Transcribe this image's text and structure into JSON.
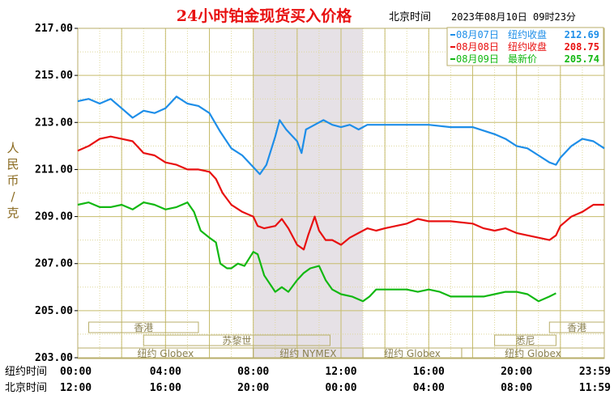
{
  "chart_data": {
    "type": "line",
    "title": "24小时铂金现货买入价格",
    "timezone_label": "北京时间",
    "timestamp": "2023年08月10日 09时23分",
    "ylabel": "人民币/克",
    "ylim": [
      203,
      217
    ],
    "yticks": [
      "217.00",
      "215.00",
      "213.00",
      "211.00",
      "209.00",
      "207.00",
      "205.00",
      "203.00"
    ],
    "xlim": [
      0,
      24
    ],
    "x_row_labels": [
      "纽约时间",
      "北京时间"
    ],
    "x_ticks_ny": [
      "00:00",
      "04:00",
      "08:00",
      "12:00",
      "16:00",
      "20:00",
      "23:59"
    ],
    "x_ticks_bj": [
      "12:00",
      "16:00",
      "20:00",
      "00:00",
      "04:00",
      "08:00",
      "11:59"
    ],
    "shaded_range": [
      8,
      13
    ],
    "grid": true,
    "legend_position": "top-right",
    "legend": [
      {
        "date": "08月07日",
        "label": "纽约收盘",
        "value": "212.69",
        "color": "#1e8ee8"
      },
      {
        "date": "08月08日",
        "label": "纽约收盘",
        "value": "208.75",
        "color": "#e81010"
      },
      {
        "date": "08月09日",
        "label": "最新价",
        "value": "205.74",
        "color": "#12b812"
      }
    ],
    "sessions": [
      {
        "label": "香港",
        "start": 0.5,
        "end": 5.5
      },
      {
        "label": "苏黎世",
        "start": 3.0,
        "end": 11.5
      },
      {
        "label": "纽约 Globex",
        "start": 0.0,
        "end": 8.0
      },
      {
        "label": "纽约 NYMEX",
        "start": 8.0,
        "end": 13.0
      },
      {
        "label": "纽约 Globex",
        "start": 13.0,
        "end": 17.5
      },
      {
        "label": "悉尼",
        "start": 19.0,
        "end": 21.8
      },
      {
        "label": "香港",
        "start": 21.5,
        "end": 24.0
      },
      {
        "label": "纽约 Globex",
        "start": 17.5,
        "end": 24.0
      }
    ],
    "series": [
      {
        "name": "08月07日",
        "color": "#1e8ee8",
        "points": [
          [
            0,
            213.9
          ],
          [
            0.5,
            214.0
          ],
          [
            1.0,
            213.8
          ],
          [
            1.5,
            214.0
          ],
          [
            2.0,
            213.6
          ],
          [
            2.5,
            213.2
          ],
          [
            3.0,
            213.5
          ],
          [
            3.5,
            213.4
          ],
          [
            4.0,
            213.6
          ],
          [
            4.5,
            214.1
          ],
          [
            5.0,
            213.8
          ],
          [
            5.5,
            213.7
          ],
          [
            6.0,
            213.4
          ],
          [
            6.5,
            212.6
          ],
          [
            7.0,
            211.9
          ],
          [
            7.5,
            211.6
          ],
          [
            8.0,
            211.1
          ],
          [
            8.3,
            210.8
          ],
          [
            8.6,
            211.2
          ],
          [
            9.0,
            212.4
          ],
          [
            9.2,
            213.1
          ],
          [
            9.5,
            212.7
          ],
          [
            9.8,
            212.4
          ],
          [
            10.0,
            212.2
          ],
          [
            10.2,
            211.7
          ],
          [
            10.4,
            212.7
          ],
          [
            10.8,
            212.9
          ],
          [
            11.2,
            213.1
          ],
          [
            11.6,
            212.9
          ],
          [
            12.0,
            212.8
          ],
          [
            12.4,
            212.9
          ],
          [
            12.8,
            212.7
          ],
          [
            13.2,
            212.9
          ],
          [
            13.6,
            212.9
          ],
          [
            14.0,
            212.9
          ],
          [
            15.0,
            212.9
          ],
          [
            16.0,
            212.9
          ],
          [
            17.0,
            212.8
          ],
          [
            18.0,
            212.8
          ],
          [
            19.0,
            212.5
          ],
          [
            19.5,
            212.3
          ],
          [
            20.0,
            212.0
          ],
          [
            20.5,
            211.9
          ],
          [
            21.0,
            211.6
          ],
          [
            21.5,
            211.3
          ],
          [
            21.8,
            211.2
          ],
          [
            22.0,
            211.5
          ],
          [
            22.5,
            212.0
          ],
          [
            23.0,
            212.3
          ],
          [
            23.5,
            212.2
          ],
          [
            24.0,
            211.9
          ]
        ]
      },
      {
        "name": "08月08日",
        "color": "#e81010",
        "points": [
          [
            0,
            211.8
          ],
          [
            0.5,
            212.0
          ],
          [
            1.0,
            212.3
          ],
          [
            1.5,
            212.4
          ],
          [
            2.0,
            212.3
          ],
          [
            2.5,
            212.2
          ],
          [
            3.0,
            211.7
          ],
          [
            3.5,
            211.6
          ],
          [
            4.0,
            211.3
          ],
          [
            4.5,
            211.2
          ],
          [
            5.0,
            211.0
          ],
          [
            5.5,
            211.0
          ],
          [
            6.0,
            210.9
          ],
          [
            6.3,
            210.6
          ],
          [
            6.6,
            210.0
          ],
          [
            7.0,
            209.5
          ],
          [
            7.5,
            209.2
          ],
          [
            8.0,
            209.0
          ],
          [
            8.2,
            208.6
          ],
          [
            8.5,
            208.5
          ],
          [
            9.0,
            208.6
          ],
          [
            9.3,
            208.9
          ],
          [
            9.6,
            208.5
          ],
          [
            10.0,
            207.8
          ],
          [
            10.3,
            207.6
          ],
          [
            10.5,
            208.2
          ],
          [
            10.8,
            209.0
          ],
          [
            11.0,
            208.4
          ],
          [
            11.3,
            208.0
          ],
          [
            11.6,
            208.0
          ],
          [
            12.0,
            207.8
          ],
          [
            12.4,
            208.1
          ],
          [
            12.8,
            208.3
          ],
          [
            13.2,
            208.5
          ],
          [
            13.6,
            208.4
          ],
          [
            14.0,
            208.5
          ],
          [
            14.5,
            208.6
          ],
          [
            15.0,
            208.7
          ],
          [
            15.5,
            208.9
          ],
          [
            16.0,
            208.8
          ],
          [
            17.0,
            208.8
          ],
          [
            18.0,
            208.7
          ],
          [
            18.5,
            208.5
          ],
          [
            19.0,
            208.4
          ],
          [
            19.5,
            208.5
          ],
          [
            20.0,
            208.3
          ],
          [
            20.5,
            208.2
          ],
          [
            21.0,
            208.1
          ],
          [
            21.5,
            208.0
          ],
          [
            21.8,
            208.2
          ],
          [
            22.0,
            208.6
          ],
          [
            22.5,
            209.0
          ],
          [
            23.0,
            209.2
          ],
          [
            23.5,
            209.5
          ],
          [
            24.0,
            209.5
          ]
        ]
      },
      {
        "name": "08月09日",
        "color": "#12b812",
        "points": [
          [
            0,
            209.5
          ],
          [
            0.5,
            209.6
          ],
          [
            1.0,
            209.4
          ],
          [
            1.5,
            209.4
          ],
          [
            2.0,
            209.5
          ],
          [
            2.5,
            209.3
          ],
          [
            3.0,
            209.6
          ],
          [
            3.5,
            209.5
          ],
          [
            4.0,
            209.3
          ],
          [
            4.5,
            209.4
          ],
          [
            5.0,
            209.6
          ],
          [
            5.3,
            209.2
          ],
          [
            5.6,
            208.4
          ],
          [
            6.0,
            208.1
          ],
          [
            6.3,
            207.9
          ],
          [
            6.5,
            207.0
          ],
          [
            6.8,
            206.8
          ],
          [
            7.0,
            206.8
          ],
          [
            7.3,
            207.0
          ],
          [
            7.6,
            206.9
          ],
          [
            8.0,
            207.5
          ],
          [
            8.2,
            207.4
          ],
          [
            8.5,
            206.5
          ],
          [
            9.0,
            205.8
          ],
          [
            9.3,
            206.0
          ],
          [
            9.6,
            205.8
          ],
          [
            10.0,
            206.3
          ],
          [
            10.3,
            206.6
          ],
          [
            10.6,
            206.8
          ],
          [
            11.0,
            206.9
          ],
          [
            11.3,
            206.3
          ],
          [
            11.6,
            205.9
          ],
          [
            12.0,
            205.7
          ],
          [
            12.5,
            205.6
          ],
          [
            13.0,
            205.4
          ],
          [
            13.3,
            205.6
          ],
          [
            13.6,
            205.9
          ],
          [
            14.0,
            205.9
          ],
          [
            15.0,
            205.9
          ],
          [
            15.5,
            205.8
          ],
          [
            16.0,
            205.9
          ],
          [
            16.5,
            205.8
          ],
          [
            17.0,
            205.6
          ],
          [
            17.5,
            205.6
          ],
          [
            18.0,
            205.6
          ],
          [
            18.5,
            205.6
          ],
          [
            19.0,
            205.7
          ],
          [
            19.5,
            205.8
          ],
          [
            20.0,
            205.8
          ],
          [
            20.5,
            205.7
          ],
          [
            21.0,
            205.4
          ],
          [
            21.5,
            205.6
          ],
          [
            21.8,
            205.74
          ]
        ]
      }
    ]
  }
}
